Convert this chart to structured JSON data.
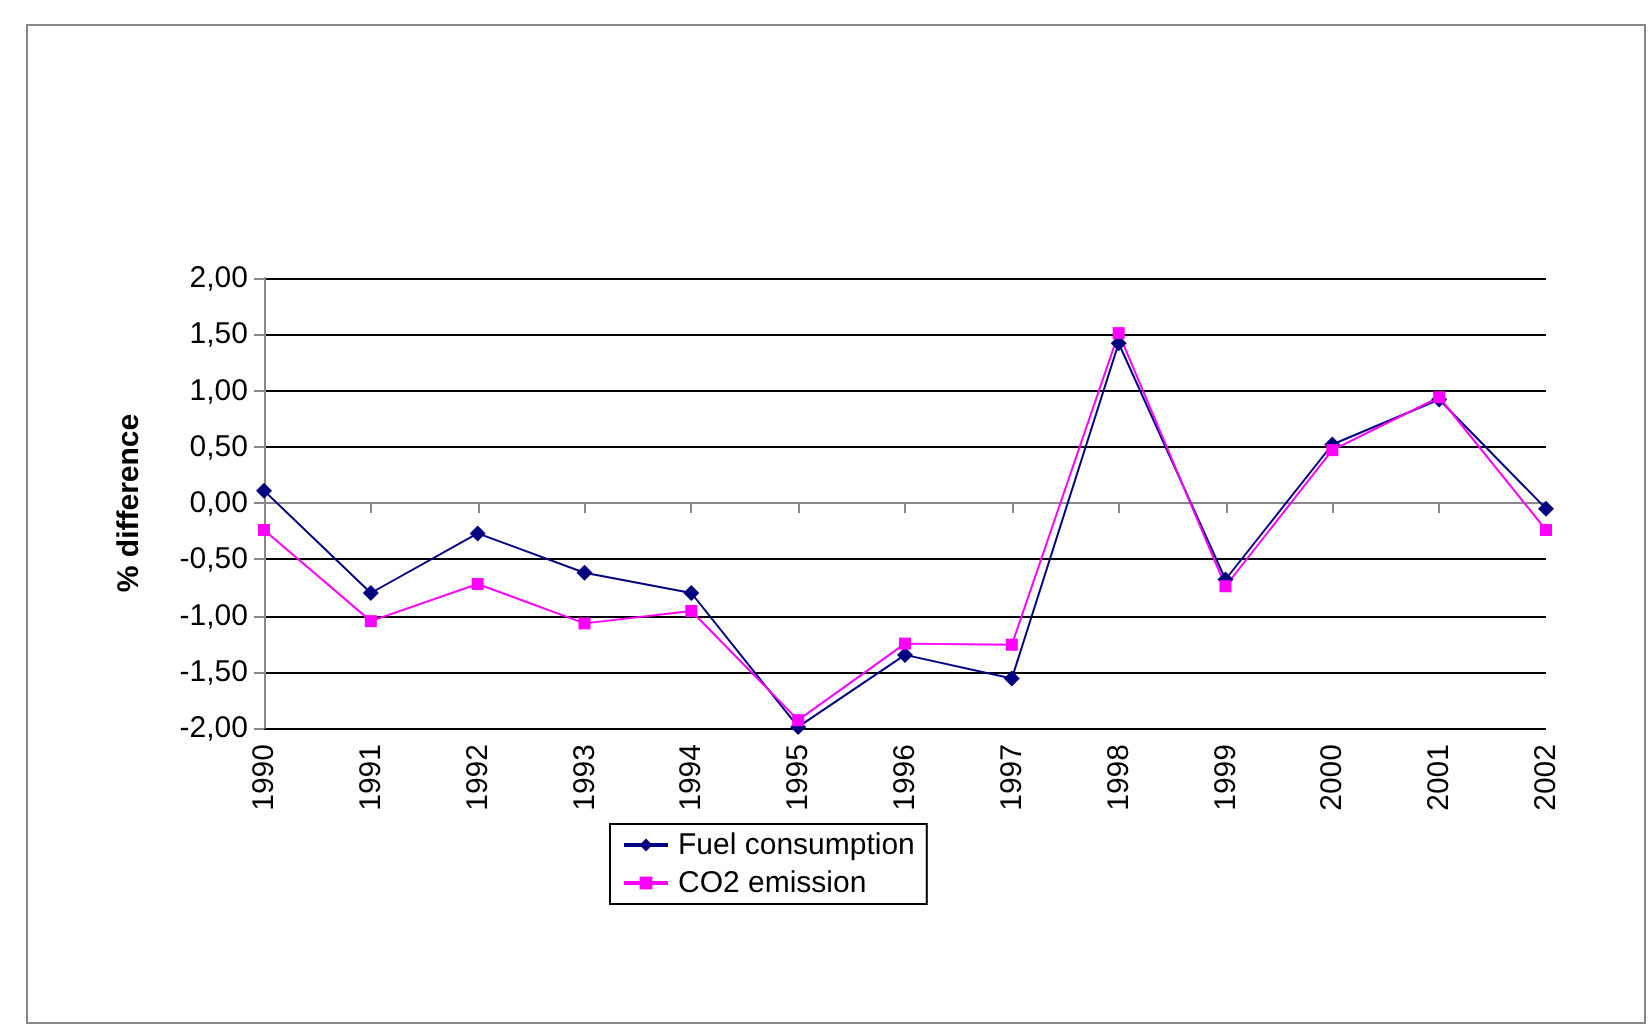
{
  "chart_data": {
    "type": "line",
    "ylabel": "% difference",
    "categories": [
      "1990",
      "1991",
      "1992",
      "1993",
      "1994",
      "1995",
      "1996",
      "1997",
      "1998",
      "1999",
      "2000",
      "2001",
      "2002"
    ],
    "series": [
      {
        "name": "Fuel consumption",
        "color": "#000080",
        "marker": "diamond",
        "values": [
          0.11,
          -0.8,
          -0.27,
          -0.62,
          -0.8,
          -1.99,
          -1.35,
          -1.56,
          1.42,
          -0.68,
          0.52,
          0.92,
          -0.05
        ]
      },
      {
        "name": "CO2 emission",
        "color": "#ff00ff",
        "marker": "square",
        "values": [
          -0.24,
          -1.05,
          -0.72,
          -1.07,
          -0.96,
          -1.93,
          -1.25,
          -1.26,
          1.51,
          -0.74,
          0.47,
          0.94,
          -0.24
        ]
      }
    ],
    "ylim": [
      -2,
      2
    ],
    "yticks": [
      {
        "value": -2,
        "label": "-2,00"
      },
      {
        "value": -1.5,
        "label": "-1,50"
      },
      {
        "value": -1,
        "label": "-1,00"
      },
      {
        "value": -0.5,
        "label": "-0,50"
      },
      {
        "value": 0,
        "label": "0,00"
      },
      {
        "value": 0.5,
        "label": "0,50"
      },
      {
        "value": 1,
        "label": "1,00"
      },
      {
        "value": 1.5,
        "label": "1,50"
      },
      {
        "value": 2,
        "label": "2,00"
      }
    ],
    "grid": "y",
    "legend": "bottom",
    "line_style": "solid"
  }
}
